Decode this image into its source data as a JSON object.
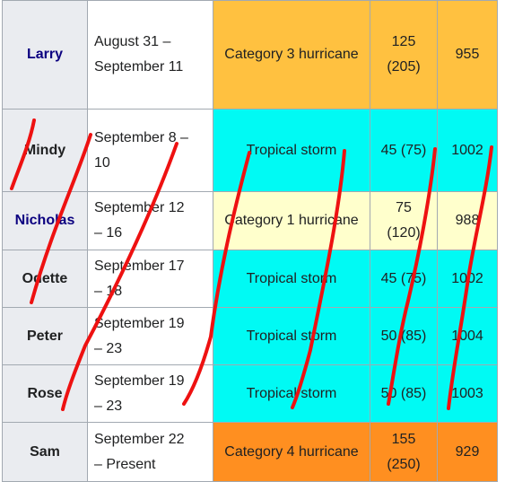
{
  "rows": [
    {
      "name": "Larry",
      "dates": [
        "August 31 –",
        "September 11"
      ],
      "classification": "Category 3 hurricane",
      "wind": [
        "125",
        "(205)"
      ],
      "pressure": "955",
      "cls_color": "#ffc140",
      "wind_color": "#ffc140",
      "link": true
    },
    {
      "name": "Mindy",
      "dates": [
        "September 8 –",
        "10"
      ],
      "classification": "Tropical storm",
      "wind": [
        "45 (75)"
      ],
      "pressure": "1002",
      "cls_color": "#00faf4",
      "wind_color": "#00faf4",
      "link": false
    },
    {
      "name": "Nicholas",
      "dates": [
        "September 12",
        "– 16"
      ],
      "classification": "Category 1 hurricane",
      "wind": [
        "75",
        "(120)"
      ],
      "pressure": "988",
      "cls_color": "#ffffcc",
      "wind_color": "#ffffcc",
      "link": true
    },
    {
      "name": "Odette",
      "dates": [
        "September 17",
        "– 18"
      ],
      "classification": "Tropical storm",
      "wind": [
        "45 (75)"
      ],
      "pressure": "1002",
      "cls_color": "#00faf4",
      "wind_color": "#00faf4",
      "link": false
    },
    {
      "name": "Peter",
      "dates": [
        "September 19",
        "– 23"
      ],
      "classification": "Tropical storm",
      "wind": [
        "50 (85)"
      ],
      "pressure": "1004",
      "cls_color": "#00faf4",
      "wind_color": "#00faf4",
      "link": false
    },
    {
      "name": "Rose",
      "dates": [
        "September 19",
        "– 23"
      ],
      "classification": "Tropical storm",
      "wind": [
        "50 (85)"
      ],
      "pressure": "1003",
      "cls_color": "#00faf4",
      "wind_color": "#00faf4",
      "link": false
    },
    {
      "name": "Sam",
      "dates": [
        "September 22",
        "– Present"
      ],
      "classification": "Category 4 hurricane",
      "wind": [
        "155",
        "(250)"
      ],
      "pressure": "929",
      "cls_color": "#ff8f20",
      "wind_color": "#ff8f20",
      "link": false
    }
  ],
  "annotation_color": "#ee1111"
}
